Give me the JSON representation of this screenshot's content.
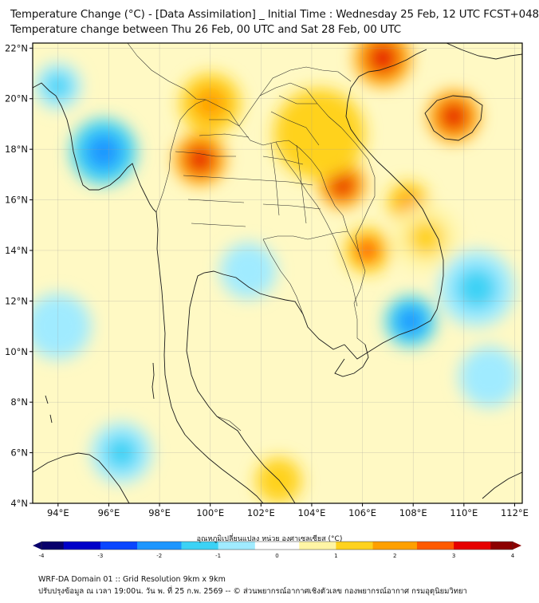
{
  "title": "Temperature Change (°C) - [Data Assimilation] _ Initial Time : Wednesday 25 Feb, 12 UTC FCST+048",
  "subtitle": "Temperature change between Thu 26 Feb, 00 UTC and Sat 28 Feb, 00 UTC",
  "map": {
    "lon_range": [
      93,
      112.3
    ],
    "lat_range": [
      4,
      22.2
    ],
    "lon_ticks": [
      "94°E",
      "96°E",
      "98°E",
      "100°E",
      "102°E",
      "104°E",
      "106°E",
      "108°E",
      "110°E",
      "112°E"
    ],
    "lat_ticks": [
      "22°N",
      "20°N",
      "18°N",
      "16°N",
      "14°N",
      "12°N",
      "10°N",
      "8°N",
      "6°N",
      "4°N"
    ]
  },
  "colorbar": {
    "title": "อุณหภูมิเปลี่ยนแปลง หน่วย องศาเซลเซียส (°C)",
    "min": -4,
    "max": 4,
    "ticks": [
      "-4",
      "-3",
      "-2",
      "-1",
      "0",
      "1",
      "2",
      "3",
      "4"
    ],
    "colors": [
      "#08006b",
      "#0000c8",
      "#0a46ff",
      "#1e96ff",
      "#3cd2f5",
      "#a0ebff",
      "#ffffff",
      "#fff5a5",
      "#ffd21e",
      "#ffa000",
      "#ff5a00",
      "#e60000",
      "#8c0000"
    ]
  },
  "footer": {
    "line1": "WRF-DA Domain 01 :: Grid Resolution 9km x 9km",
    "line2": "ปรับปรุงข้อมูล ณ เวลา 19:00น. วัน พ. ที่ 25 ก.พ. 2569 -- © ส่วนพยากรณ์อากาศเชิงตัวเลข กองพยากรณ์อากาศ กรมอุตุนิยมวิทยา"
  },
  "field_anomalies": [
    {
      "lon": 105.2,
      "lat": 16.6,
      "value": 3.2,
      "r": 0.9
    },
    {
      "lon": 99.6,
      "lat": 17.6,
      "value": 3.0,
      "r": 1.0
    },
    {
      "lon": 106.8,
      "lat": 21.6,
      "value": 3.2,
      "r": 1.1
    },
    {
      "lon": 109.6,
      "lat": 19.3,
      "value": 3.0,
      "r": 1.0
    },
    {
      "lon": 106.2,
      "lat": 14.0,
      "value": 2.5,
      "r": 0.9
    },
    {
      "lon": 107.8,
      "lat": 15.9,
      "value": 2.3,
      "r": 0.8
    },
    {
      "lon": 100.0,
      "lat": 19.8,
      "value": 1.8,
      "r": 1.2
    },
    {
      "lon": 104.3,
      "lat": 18.6,
      "value": 1.6,
      "r": 1.8
    },
    {
      "lon": 108.5,
      "lat": 14.5,
      "value": 1.5,
      "r": 1.3
    },
    {
      "lon": 102.7,
      "lat": 4.9,
      "value": 1.6,
      "r": 0.9
    },
    {
      "lon": 95.8,
      "lat": 17.9,
      "value": -1.9,
      "r": 1.3
    },
    {
      "lon": 107.9,
      "lat": 11.2,
      "value": -2.2,
      "r": 1.0
    },
    {
      "lon": 110.5,
      "lat": 12.5,
      "value": -1.3,
      "r": 1.5
    },
    {
      "lon": 101.5,
      "lat": 13.2,
      "value": -1.0,
      "r": 1.1
    },
    {
      "lon": 96.5,
      "lat": 6.0,
      "value": -1.4,
      "r": 1.2
    },
    {
      "lon": 94.0,
      "lat": 11.0,
      "value": -1.0,
      "r": 1.3
    },
    {
      "lon": 94.0,
      "lat": 20.5,
      "value": -1.2,
      "r": 0.9
    },
    {
      "lon": 111.0,
      "lat": 9.0,
      "value": -1.0,
      "r": 1.2
    }
  ]
}
